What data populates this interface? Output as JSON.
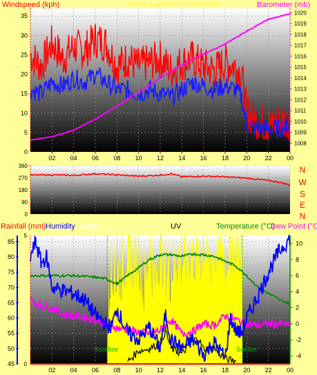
{
  "colors": {
    "background": "#ffff99",
    "wind_gust": "#ff0000",
    "wind_avg": "#1a1aff",
    "barometer": "#ff00ff",
    "direction": "#ff0000",
    "rainfall": "#ff0000",
    "humidity": "#0000ff",
    "solar_label": "#ffffff",
    "solar_fill": "#ffff00",
    "uv": "#000000",
    "temperature": "#008800",
    "dew_point": "#ff00ff",
    "sun_event": "#00aa00"
  },
  "top_panel": {
    "left_title": "Windspeed (kph)",
    "right_title": "Barometer (mb)",
    "center_title": "24 hour graph start: 23 April 2008"
  },
  "compass": [
    "N",
    "W",
    "S",
    "E",
    "N"
  ],
  "bottom_panel": {
    "rainfall_title": "Rainfall (mm)",
    "humidity_title": "Humidity",
    "solar_title": "Solar",
    "uv_title": "UV",
    "temperature_title": "Temperature (°C)",
    "dewpoint_title": "Dew Point (°C)",
    "sunrise_label": "SunRise",
    "sunset_label": "SunSet"
  },
  "chart_data": [
    {
      "type": "line",
      "name": "wind-barometer",
      "x_ticks": [
        "02",
        "04",
        "06",
        "08",
        "10",
        "12",
        "14",
        "16",
        "18",
        "20",
        "22",
        "00"
      ],
      "xlim": [
        0,
        24
      ],
      "left_ticks": [
        "0",
        "5",
        "10",
        "15",
        "20",
        "25",
        "30",
        "35"
      ],
      "ylim": [
        0,
        37
      ],
      "right_ticks": [
        "1008",
        "1009",
        "1010",
        "1011",
        "1012",
        "1013",
        "1014",
        "1015",
        "1016",
        "1017",
        "1018",
        "1019",
        "1020"
      ],
      "y2lim": [
        1007.2,
        1020.4
      ],
      "series": [
        {
          "name": "gust",
          "axis": "left",
          "x": [
            0,
            1,
            2,
            3,
            4,
            5,
            6,
            7,
            8,
            9,
            10,
            11,
            12,
            13,
            14,
            15,
            16,
            17,
            18,
            19,
            19.5,
            20,
            21,
            22,
            23,
            24
          ],
          "y": [
            25,
            22,
            28,
            24,
            27,
            26,
            29,
            28,
            22,
            24,
            22,
            23,
            24,
            21,
            23,
            24,
            22,
            21,
            23,
            22,
            20,
            10,
            8,
            7,
            8,
            8
          ]
        },
        {
          "name": "average",
          "axis": "left",
          "x": [
            0,
            1,
            2,
            3,
            4,
            5,
            6,
            7,
            8,
            9,
            10,
            11,
            12,
            13,
            14,
            15,
            16,
            17,
            18,
            19,
            19.5,
            20,
            21,
            22,
            23,
            24
          ],
          "y": [
            16,
            15,
            18,
            17,
            19,
            18,
            20,
            18,
            16,
            16,
            15,
            16,
            15,
            14,
            16,
            18,
            17,
            16,
            17,
            16,
            14,
            7,
            6,
            6,
            6,
            7
          ]
        },
        {
          "name": "barometer",
          "axis": "right",
          "x": [
            0,
            2,
            4,
            6,
            8,
            10,
            12,
            14,
            16,
            18,
            20,
            22,
            24
          ],
          "y": [
            1008.3,
            1008.6,
            1009.2,
            1010.2,
            1011.4,
            1012.7,
            1014.0,
            1015.2,
            1016.2,
            1017.1,
            1018.3,
            1019.4,
            1019.9
          ]
        }
      ]
    },
    {
      "type": "line",
      "name": "wind-direction",
      "left_ticks": [
        "0",
        "90",
        "180",
        "270",
        "360"
      ],
      "ylim": [
        0,
        360
      ],
      "series": [
        {
          "name": "direction",
          "x": [
            0,
            2,
            4,
            6,
            8,
            10,
            12,
            13,
            14,
            16,
            18,
            20,
            22,
            23,
            24
          ],
          "y": [
            290,
            292,
            288,
            300,
            292,
            282,
            290,
            300,
            278,
            283,
            277,
            268,
            250,
            238,
            215
          ]
        }
      ]
    },
    {
      "type": "line",
      "name": "temp-humidity-solar",
      "x_ticks": [
        "02",
        "04",
        "06",
        "08",
        "10",
        "12",
        "14",
        "16",
        "18",
        "20",
        "22",
        "00"
      ],
      "xlim": [
        0,
        24
      ],
      "humidity_ticks": [
        "45",
        "50",
        "55",
        "60",
        "65",
        "70",
        "75",
        "80",
        "85"
      ],
      "humidity_lim": [
        45,
        87
      ],
      "rain_ticks": [
        "0",
        "5"
      ],
      "rain_lim": [
        0,
        5
      ],
      "temp_ticks": [
        "-4",
        "-2",
        "0",
        "2",
        "4",
        "6",
        "8",
        "10"
      ],
      "temp_lim": [
        -5,
        11
      ],
      "sunrise_hour": 7.1,
      "sunset_hour": 19.6,
      "series": [
        {
          "name": "solar",
          "axis": "rain",
          "x": [
            7.1,
            7.5,
            8,
            8.5,
            9,
            9.5,
            10,
            10.5,
            11,
            11.5,
            12,
            12.5,
            13,
            13.5,
            14,
            14.5,
            15,
            15.5,
            16,
            16.5,
            17,
            17.5,
            18,
            18.5,
            19,
            19.6
          ],
          "y": [
            1.2,
            4.5,
            3.5,
            4.0,
            4.8,
            4.2,
            4.6,
            3.0,
            4.7,
            3.2,
            4.9,
            4.0,
            3.8,
            4.4,
            4.0,
            4.3,
            4.6,
            4.1,
            4.7,
            4.0,
            4.5,
            4.8,
            4.3,
            5.0,
            4.6,
            5.0
          ]
        },
        {
          "name": "humidity",
          "axis": "humidity",
          "x": [
            0,
            0.5,
            1,
            1.5,
            2,
            3,
            4,
            5,
            6,
            7,
            7.5,
            8,
            9,
            10,
            11,
            12,
            12.5,
            13,
            14,
            15,
            16,
            17,
            18,
            18.5,
            19,
            19.5,
            20,
            21,
            22,
            23,
            24
          ],
          "y": [
            80,
            85,
            78,
            80,
            70,
            69,
            68,
            66,
            61,
            58,
            57,
            63,
            55,
            53,
            57,
            50,
            61,
            53,
            50,
            53,
            48,
            52,
            47,
            60,
            56,
            55,
            60,
            67,
            75,
            82,
            86
          ]
        },
        {
          "name": "temperature",
          "axis": "temp",
          "x": [
            0,
            2,
            4,
            6,
            7,
            8,
            9,
            10,
            11,
            12,
            13,
            14,
            15,
            16,
            17,
            18,
            19,
            20,
            21,
            22,
            23,
            24
          ],
          "y": [
            6.0,
            6.0,
            6.0,
            5.8,
            5.6,
            5.0,
            6.0,
            7.0,
            8.0,
            8.6,
            8.6,
            8.4,
            8.7,
            8.6,
            8.4,
            7.8,
            7.2,
            6.0,
            4.6,
            3.8,
            3.0,
            2.5
          ]
        },
        {
          "name": "dew point",
          "axis": "temp",
          "x": [
            0,
            1,
            2,
            3,
            4,
            5,
            6,
            7,
            8,
            9,
            10,
            11,
            12,
            13,
            14,
            15,
            16,
            17,
            18,
            19,
            20,
            21,
            22,
            23,
            24
          ],
          "y": [
            3.0,
            2.2,
            2.0,
            1.2,
            1.0,
            0.8,
            0.5,
            0.0,
            -0.5,
            -0.8,
            -1.0,
            -1.2,
            -0.8,
            0.5,
            -1.2,
            -1.0,
            0.0,
            -0.2,
            1.0,
            0.5,
            0.0,
            -0.2,
            0.0,
            0.0,
            -0.2
          ]
        },
        {
          "name": "uv",
          "axis": "rain",
          "x": [
            9,
            10,
            11,
            12,
            12.5,
            13,
            13.5,
            14,
            15,
            15.5,
            16,
            17,
            18,
            19
          ],
          "y": [
            0.1,
            0.5,
            0.6,
            0.8,
            1.3,
            0.6,
            0.5,
            0.4,
            0.9,
            1.0,
            0.6,
            0.6,
            0.2,
            0.1
          ]
        },
        {
          "name": "rainfall",
          "axis": "rain",
          "x": [
            0,
            24
          ],
          "y": [
            0,
            0
          ]
        }
      ]
    }
  ]
}
